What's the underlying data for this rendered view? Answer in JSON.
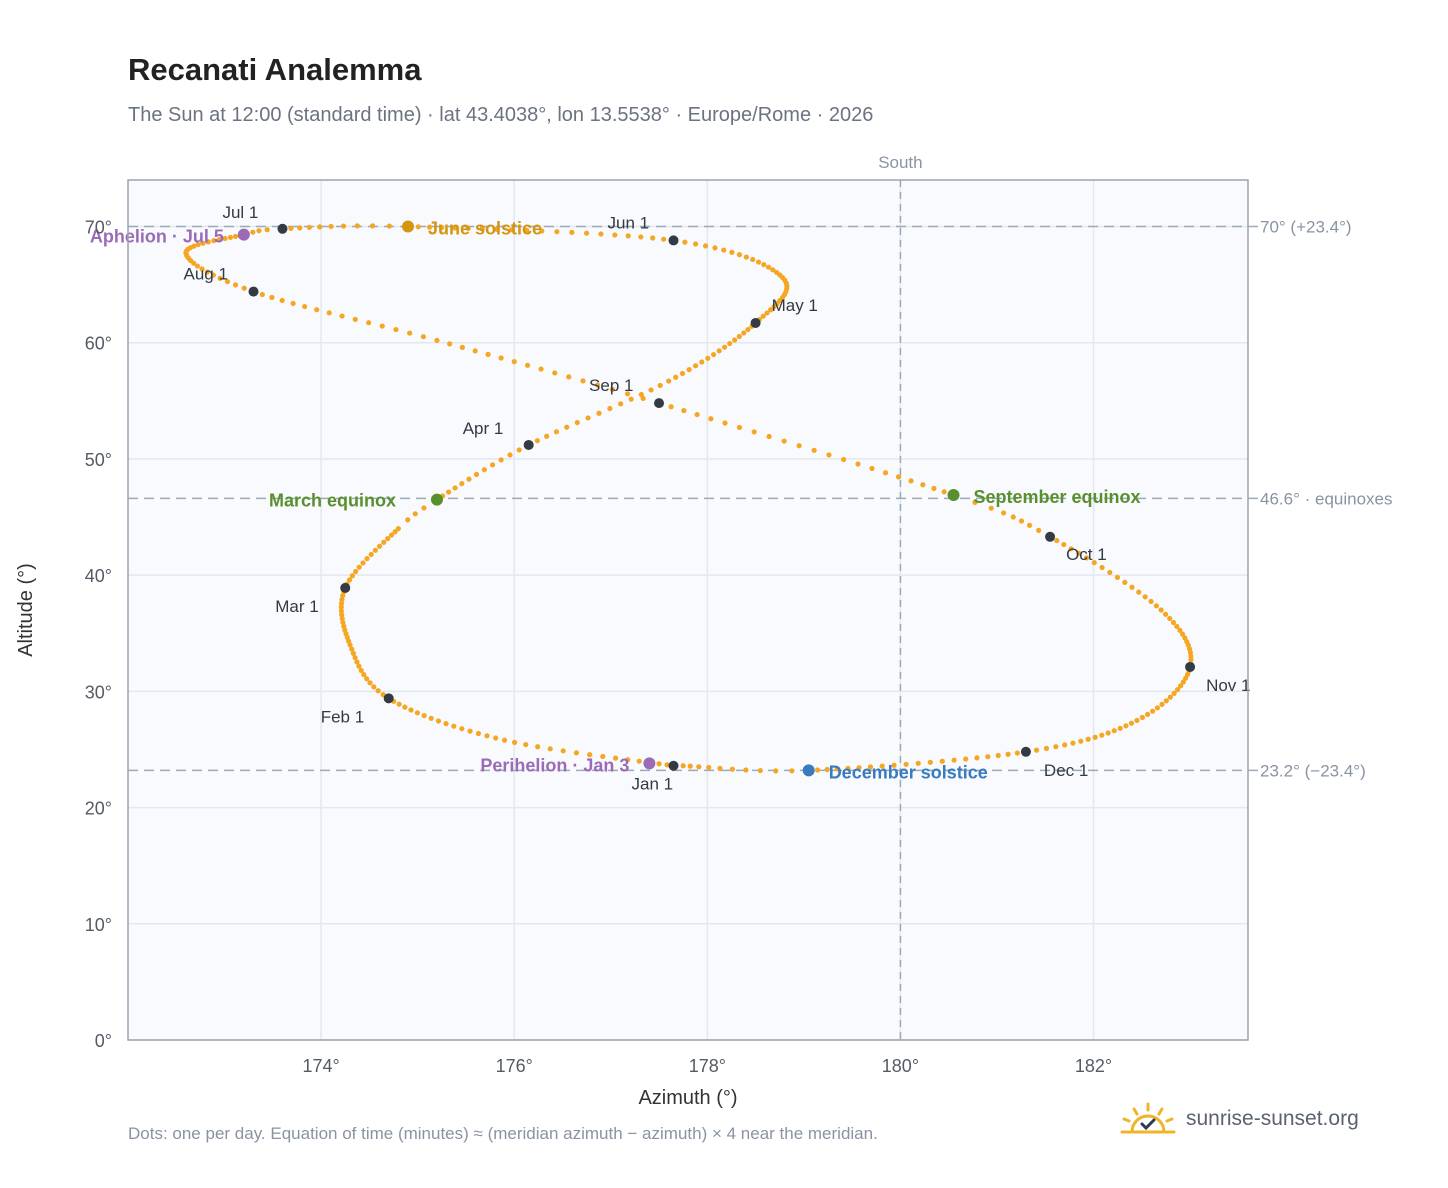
{
  "title": "Recanati Analemma",
  "subtitle": "The Sun at 12:00 (standard time) · lat 43.4038°, lon 13.5538° · Europe/Rome · 2026",
  "footnote": "Dots: one per day. Equation of time (minutes) ≈ (meridian azimuth − azimuth) × 4 near the meridian.",
  "brand": {
    "name": "sunrise-sunset.org",
    "icon": "sun-check-icon"
  },
  "colors": {
    "path": "#f5a623",
    "month": "#333a44",
    "equinox": "#5a8f2e",
    "june_solstice": "#d4960f",
    "december_solstice": "#3a7bbf",
    "aphelion_perihelion": "#9b6bb8",
    "reference": "#9aaab8"
  },
  "chart_data": {
    "type": "scatter",
    "title": "Recanati Analemma",
    "xlabel": "Azimuth (°)",
    "ylabel": "Altitude (°)",
    "xlim": [
      172.0,
      183.6
    ],
    "ylim": [
      0,
      74
    ],
    "xticks": [
      {
        "v": 174,
        "label": "174°"
      },
      {
        "v": 176,
        "label": "176°"
      },
      {
        "v": 178,
        "label": "178°"
      },
      {
        "v": 180,
        "label": "180°"
      },
      {
        "v": 182,
        "label": "182°"
      }
    ],
    "yticks": [
      {
        "v": 0,
        "label": "0°"
      },
      {
        "v": 10,
        "label": "10°"
      },
      {
        "v": 20,
        "label": "20°"
      },
      {
        "v": 30,
        "label": "30°"
      },
      {
        "v": 40,
        "label": "40°"
      },
      {
        "v": 50,
        "label": "50°"
      },
      {
        "v": 60,
        "label": "60°"
      },
      {
        "v": 70,
        "label": "70°"
      }
    ],
    "grid": true,
    "meridian": {
      "azimuth": 180,
      "label": "South"
    },
    "reference_lines": [
      {
        "altitude": 70.0,
        "label": "70° (+23.4°)"
      },
      {
        "altitude": 46.6,
        "label": "46.6° · equinoxes"
      },
      {
        "altitude": 23.2,
        "label": "23.2° (−23.4°)"
      }
    ],
    "daily_path": {
      "description_note": "one per day",
      "knots": [
        {
          "day": 1,
          "az": 177.65,
          "alt": 23.6
        },
        {
          "day": 16,
          "az": 175.9,
          "alt": 25.8
        },
        {
          "day": 32,
          "az": 174.7,
          "alt": 29.4
        },
        {
          "day": 45,
          "az": 174.3,
          "alt": 34.0
        },
        {
          "day": 60,
          "az": 174.25,
          "alt": 38.9
        },
        {
          "day": 75,
          "az": 174.8,
          "alt": 44.0
        },
        {
          "day": 79,
          "az": 175.2,
          "alt": 46.5
        },
        {
          "day": 91,
          "az": 176.15,
          "alt": 51.2
        },
        {
          "day": 105,
          "az": 177.6,
          "alt": 56.7
        },
        {
          "day": 121,
          "az": 178.5,
          "alt": 61.7
        },
        {
          "day": 136,
          "az": 178.78,
          "alt": 65.6
        },
        {
          "day": 152,
          "az": 177.65,
          "alt": 68.8
        },
        {
          "day": 172,
          "az": 174.9,
          "alt": 70.0
        },
        {
          "day": 182,
          "az": 173.6,
          "alt": 69.8
        },
        {
          "day": 186,
          "az": 173.2,
          "alt": 69.3
        },
        {
          "day": 200,
          "az": 172.6,
          "alt": 67.7
        },
        {
          "day": 213,
          "az": 173.3,
          "alt": 64.4
        },
        {
          "day": 228,
          "az": 175.2,
          "alt": 60.2
        },
        {
          "day": 244,
          "az": 177.5,
          "alt": 54.8
        },
        {
          "day": 266,
          "az": 180.55,
          "alt": 46.9
        },
        {
          "day": 274,
          "az": 181.55,
          "alt": 43.3
        },
        {
          "day": 290,
          "az": 182.7,
          "alt": 37.0
        },
        {
          "day": 305,
          "az": 183.0,
          "alt": 32.1
        },
        {
          "day": 320,
          "az": 182.45,
          "alt": 27.5
        },
        {
          "day": 335,
          "az": 181.3,
          "alt": 24.8
        },
        {
          "day": 355,
          "az": 179.05,
          "alt": 23.2
        },
        {
          "day": 365,
          "az": 177.75,
          "alt": 23.6
        }
      ]
    },
    "month_markers": [
      {
        "label": "Jan 1",
        "az": 177.65,
        "alt": 23.6
      },
      {
        "label": "Feb 1",
        "az": 174.7,
        "alt": 29.4
      },
      {
        "label": "Mar 1",
        "az": 174.25,
        "alt": 38.9
      },
      {
        "label": "Apr 1",
        "az": 176.15,
        "alt": 51.2
      },
      {
        "label": "May 1",
        "az": 178.5,
        "alt": 61.7
      },
      {
        "label": "Jun 1",
        "az": 177.65,
        "alt": 68.8
      },
      {
        "label": "Jul 1",
        "az": 173.6,
        "alt": 69.8
      },
      {
        "label": "Aug 1",
        "az": 173.3,
        "alt": 64.4
      },
      {
        "label": "Sep 1",
        "az": 177.5,
        "alt": 54.8
      },
      {
        "label": "Oct 1",
        "az": 181.55,
        "alt": 43.3
      },
      {
        "label": "Nov 1",
        "az": 183.0,
        "alt": 32.1
      },
      {
        "label": "Dec 1",
        "az": 181.3,
        "alt": 24.8
      }
    ],
    "events": [
      {
        "label": "March equinox",
        "az": 175.2,
        "alt": 46.5,
        "color": "#5a8f2e"
      },
      {
        "label": "June solstice",
        "az": 174.9,
        "alt": 70.0,
        "color": "#d4960f"
      },
      {
        "label": "September equinox",
        "az": 180.55,
        "alt": 46.9,
        "color": "#5a8f2e"
      },
      {
        "label": "December solstice",
        "az": 179.05,
        "alt": 23.2,
        "color": "#3a7bbf"
      },
      {
        "label": "Aphelion · Jul 5",
        "az": 173.2,
        "alt": 69.3,
        "color": "#9b6bb8"
      },
      {
        "label": "Perihelion · Jan 3",
        "az": 177.4,
        "alt": 23.8,
        "color": "#9b6bb8"
      }
    ]
  }
}
